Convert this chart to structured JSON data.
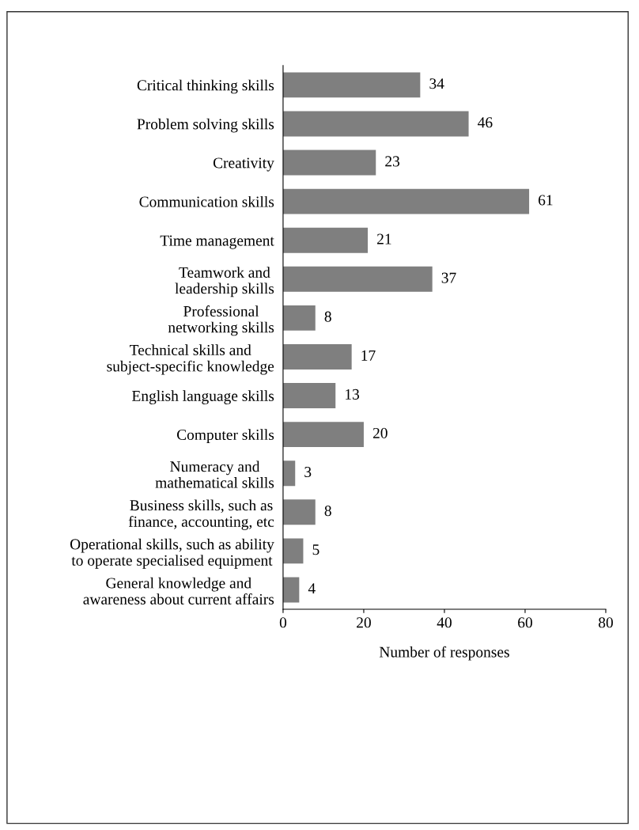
{
  "chart_data": {
    "type": "bar",
    "orientation": "horizontal",
    "xlabel": "Number of responses",
    "categories": [
      "Critical thinking skills",
      "Problem solving skills",
      "Creativity",
      "Communication skills",
      "Time management",
      "Teamwork and\nleadership skills",
      "Professional\nnetworking skills",
      "Technical skills and\nsubject-specific knowledge",
      "English language skills",
      "Computer skills",
      "Numeracy and\nmathematical skills",
      "Business skills, such as\nfinance, accounting, etc",
      "Operational skills, such as ability\nto operate specialised equipment",
      "General knowledge and\nawareness about current affairs"
    ],
    "values": [
      34,
      46,
      23,
      61,
      21,
      37,
      8,
      17,
      13,
      20,
      3,
      8,
      5,
      4
    ],
    "color": "#7f7f7f",
    "xlim": [
      0,
      80
    ],
    "xticks": [
      0,
      20,
      40,
      60,
      80
    ],
    "data_labels": true,
    "grid": false,
    "legend": false
  }
}
